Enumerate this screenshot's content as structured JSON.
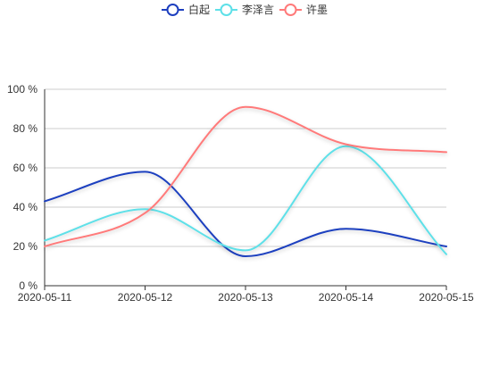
{
  "chart_data": {
    "type": "line",
    "smooth": true,
    "title": "",
    "xlabel": "",
    "ylabel": "",
    "categories": [
      "2020-05-11",
      "2020-05-12",
      "2020-05-13",
      "2020-05-14",
      "2020-05-15"
    ],
    "ylim": [
      0,
      100
    ],
    "y_ticks": [
      0,
      20,
      40,
      60,
      80,
      100
    ],
    "y_tick_labels": [
      "0 %",
      "20 %",
      "40 %",
      "60 %",
      "80 %",
      "100 %"
    ],
    "grid": true,
    "legend_position": "top-center",
    "series": [
      {
        "name": "白起",
        "color": "#1d3fbf",
        "values": [
          43,
          58,
          15,
          29,
          20
        ]
      },
      {
        "name": "李泽言",
        "color": "#5ee0e8",
        "values": [
          23,
          39,
          18,
          71,
          16
        ]
      },
      {
        "name": "许墨",
        "color": "#ff7a7a",
        "values": [
          20,
          37,
          91,
          72,
          68
        ]
      }
    ]
  }
}
